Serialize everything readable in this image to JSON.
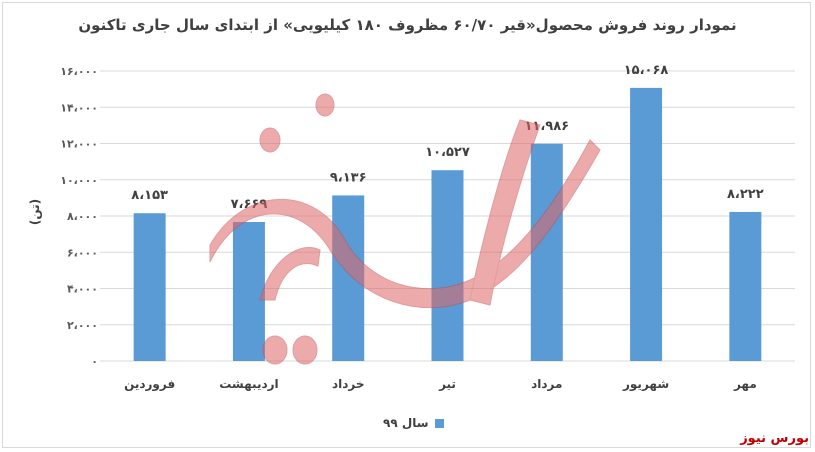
{
  "title": "نمودار روند فروش محصول«قیر ۶۰/۷۰ مظروف ۱۸۰ کیلیویی» از ابتدای سال جاری تاکنون",
  "source": "بورس نیوز",
  "watermark": "بورس نیوز",
  "colors": {
    "bar": "#5b9bd5",
    "grid": "#d9d9d9",
    "source": "#c00000",
    "watermark": "#e06666"
  },
  "chart_data": {
    "type": "bar",
    "title": "نمودار روند فروش محصول«قیر ۶۰/۷۰ مظروف ۱۸۰ کیلیویی» از ابتدای سال جاری تاکنون",
    "ylabel": "(تن)",
    "xlabel": "",
    "ylim": [
      0,
      16000
    ],
    "yticks": [
      0,
      2000,
      4000,
      6000,
      8000,
      10000,
      12000,
      14000,
      16000
    ],
    "ytick_labels": [
      "۰",
      "۲،۰۰۰",
      "۴،۰۰۰",
      "۶،۰۰۰",
      "۸،۰۰۰",
      "۱۰،۰۰۰",
      "۱۲،۰۰۰",
      "۱۴،۰۰۰",
      "۱۶،۰۰۰"
    ],
    "categories": [
      "فروردین",
      "اردیبهشت",
      "خرداد",
      "تیر",
      "مرداد",
      "شهریور",
      "مهر"
    ],
    "series": [
      {
        "name": "سال ۹۹",
        "values": [
          8153,
          7669,
          9136,
          10527,
          11986,
          15068,
          8222
        ],
        "labels": [
          "۸،۱۵۳",
          "۷،۶۶۹",
          "۹،۱۳۶",
          "۱۰،۵۲۷",
          "۱۱،۹۸۶",
          "۱۵،۰۶۸",
          "۸،۲۲۲"
        ]
      }
    ],
    "grid": true,
    "legend": "bottom"
  }
}
